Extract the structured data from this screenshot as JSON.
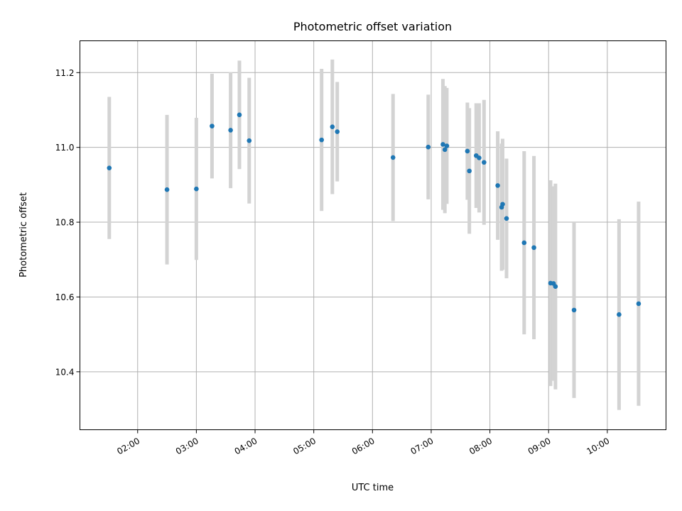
{
  "chart_data": {
    "type": "scatter",
    "title": "Photometric offset variation",
    "xlabel": "UTC time",
    "ylabel": "Photometric offset",
    "x_ticks": [
      "02:00",
      "03:00",
      "04:00",
      "05:00",
      "06:00",
      "07:00",
      "08:00",
      "09:00",
      "10:00"
    ],
    "y_ticks": [
      "10.4",
      "10.6",
      "10.8",
      "11.0",
      "11.2"
    ],
    "xlim": [
      "01:01",
      "11:00"
    ],
    "ylim": [
      10.245,
      11.285
    ],
    "grid": true,
    "marker_color": "#1f77b4",
    "errorbar_color": "#d3d3d3",
    "points": [
      {
        "time": "01:31",
        "y": 10.945,
        "err": 0.19
      },
      {
        "time": "02:30",
        "y": 10.887,
        "err": 0.2
      },
      {
        "time": "03:00",
        "y": 10.889,
        "err": 0.19
      },
      {
        "time": "03:16",
        "y": 11.057,
        "err": 0.14
      },
      {
        "time": "03:35",
        "y": 11.046,
        "err": 0.155
      },
      {
        "time": "03:44",
        "y": 11.087,
        "err": 0.145
      },
      {
        "time": "03:54",
        "y": 11.018,
        "err": 0.168
      },
      {
        "time": "05:08",
        "y": 11.02,
        "err": 0.19
      },
      {
        "time": "05:19",
        "y": 11.055,
        "err": 0.18
      },
      {
        "time": "05:24",
        "y": 11.042,
        "err": 0.133
      },
      {
        "time": "06:21",
        "y": 10.973,
        "err": 0.17
      },
      {
        "time": "06:57",
        "y": 11.001,
        "err": 0.14
      },
      {
        "time": "07:12",
        "y": 11.008,
        "err": 0.175
      },
      {
        "time": "07:14",
        "y": 10.994,
        "err": 0.17
      },
      {
        "time": "07:16",
        "y": 11.004,
        "err": 0.155
      },
      {
        "time": "07:37",
        "y": 10.99,
        "err": 0.13
      },
      {
        "time": "07:39",
        "y": 10.937,
        "err": 0.168
      },
      {
        "time": "07:46",
        "y": 10.978,
        "err": 0.14
      },
      {
        "time": "07:49",
        "y": 10.972,
        "err": 0.146
      },
      {
        "time": "07:54",
        "y": 10.96,
        "err": 0.167
      },
      {
        "time": "08:08",
        "y": 10.898,
        "err": 0.145
      },
      {
        "time": "08:12",
        "y": 10.84,
        "err": 0.17
      },
      {
        "time": "08:13",
        "y": 10.848,
        "err": 0.175
      },
      {
        "time": "08:17",
        "y": 10.81,
        "err": 0.16
      },
      {
        "time": "08:35",
        "y": 10.745,
        "err": 0.245
      },
      {
        "time": "08:45",
        "y": 10.732,
        "err": 0.245
      },
      {
        "time": "09:02",
        "y": 10.637,
        "err": 0.275
      },
      {
        "time": "09:05",
        "y": 10.636,
        "err": 0.26
      },
      {
        "time": "09:07",
        "y": 10.628,
        "err": 0.275
      },
      {
        "time": "09:26",
        "y": 10.565,
        "err": 0.235
      },
      {
        "time": "10:12",
        "y": 10.553,
        "err": 0.255
      },
      {
        "time": "10:32",
        "y": 10.582,
        "err": 0.273
      }
    ]
  }
}
